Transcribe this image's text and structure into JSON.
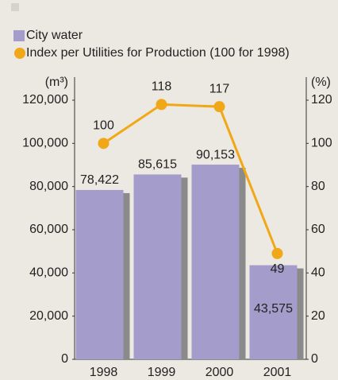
{
  "chart_data": {
    "type": "bar",
    "categories": [
      "1998",
      "1999",
      "2000",
      "2001"
    ],
    "series": [
      {
        "name": "City water",
        "color": "#a49ccb",
        "values": [
          78422,
          85615,
          90153,
          43575
        ],
        "value_labels": [
          "78,422",
          "85,615",
          "90,153",
          "43,575"
        ]
      },
      {
        "name": "Index per Utilities for Production (100 for 1998)",
        "color": "#f0a818",
        "type": "line",
        "axis": "y2",
        "values": [
          100,
          118,
          117,
          49
        ]
      }
    ],
    "y_label": "(m³)",
    "y2_label": "(%)",
    "ylim": [
      0,
      120000
    ],
    "yticks": [
      0,
      {
        "value": 20000,
        "label": "20,000"
      },
      {
        "value": 40000,
        "label": "40,000"
      },
      {
        "value": 60000,
        "label": "60,000"
      },
      {
        "value": 80000,
        "label": "80,000"
      },
      {
        "value": 100000,
        "label": "100,000"
      },
      {
        "value": 120000,
        "label": "120,000"
      }
    ],
    "y2lim": [
      0,
      120
    ],
    "y2ticks": [
      0,
      20,
      40,
      60,
      80,
      100,
      120
    ],
    "grid": false
  }
}
